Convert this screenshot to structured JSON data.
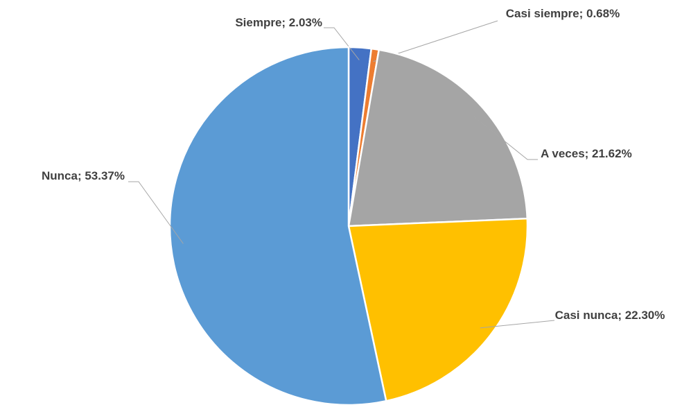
{
  "chart_data": {
    "type": "pie",
    "labels": [
      "Siempre; 2.03%",
      "Casi siempre; 0.68%",
      "A veces; 21.62%",
      "Casi nunca; 22.30%",
      "Nunca; 53.37%"
    ],
    "values": [
      2.03,
      0.68,
      21.62,
      22.3,
      53.37
    ],
    "colors": [
      "#4472c4",
      "#ed7d31",
      "#a5a5a5",
      "#ffc000",
      "#5b9bd5"
    ]
  }
}
